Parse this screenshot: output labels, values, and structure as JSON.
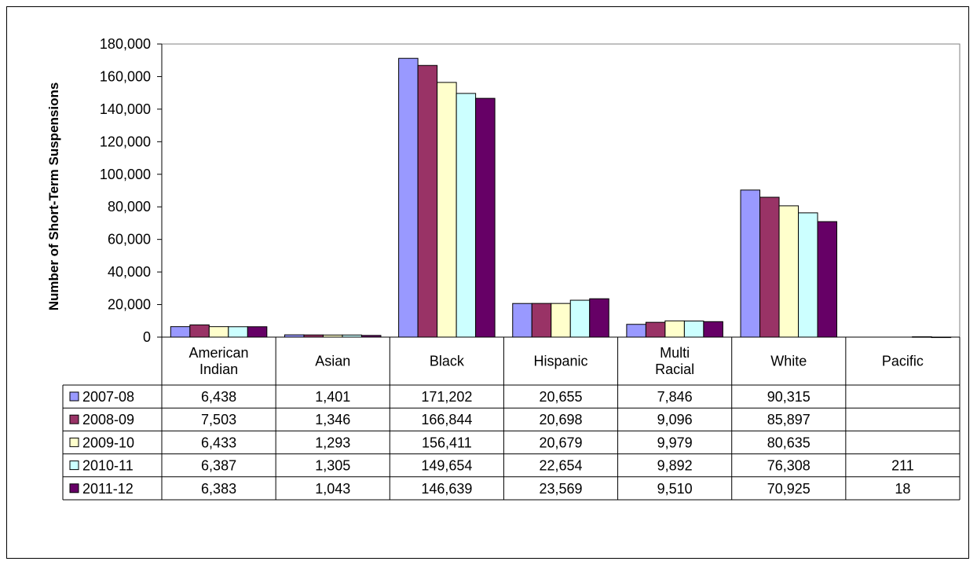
{
  "chart_data": {
    "type": "bar",
    "title": "",
    "xlabel": "",
    "ylabel": "Number of Short-Term  Suspensions",
    "ylim": [
      0,
      180000
    ],
    "yticks": [
      0,
      20000,
      40000,
      60000,
      80000,
      100000,
      120000,
      140000,
      160000,
      180000
    ],
    "ytick_labels": [
      "0",
      "20,000",
      "40,000",
      "60,000",
      "80,000",
      "100,000",
      "120,000",
      "140,000",
      "160,000",
      "180,000"
    ],
    "categories": [
      [
        "American",
        "Indian"
      ],
      [
        "Asian"
      ],
      [
        "Black"
      ],
      [
        "Hispanic"
      ],
      [
        "Multi",
        "Racial"
      ],
      [
        "White"
      ],
      [
        "Pacific"
      ]
    ],
    "grid": false,
    "legend": "data-table",
    "series": [
      {
        "name": "2007-08",
        "color": "#9999ff",
        "values": [
          6438,
          1401,
          171202,
          20655,
          7846,
          90315,
          null
        ],
        "labels": [
          "6,438",
          "1,401",
          "171,202",
          "20,655",
          "7,846",
          "90,315",
          ""
        ]
      },
      {
        "name": "2008-09",
        "color": "#993366",
        "values": [
          7503,
          1346,
          166844,
          20698,
          9096,
          85897,
          null
        ],
        "labels": [
          "7,503",
          "1,346",
          "166,844",
          "20,698",
          "9,096",
          "85,897",
          ""
        ]
      },
      {
        "name": "2009-10",
        "color": "#ffffcc",
        "values": [
          6433,
          1293,
          156411,
          20679,
          9979,
          80635,
          null
        ],
        "labels": [
          "6,433",
          "1,293",
          "156,411",
          "20,679",
          "9,979",
          "80,635",
          ""
        ]
      },
      {
        "name": "2010-11",
        "color": "#ccffff",
        "values": [
          6387,
          1305,
          149654,
          22654,
          9892,
          76308,
          211
        ],
        "labels": [
          "6,387",
          "1,305",
          "149,654",
          "22,654",
          "9,892",
          "76,308",
          "211"
        ]
      },
      {
        "name": "2011-12",
        "color": "#660066",
        "values": [
          6383,
          1043,
          146639,
          23569,
          9510,
          70925,
          18
        ],
        "labels": [
          "6,383",
          "1,043",
          "146,639",
          "23,569",
          "9,510",
          "70,925",
          "18"
        ]
      }
    ]
  }
}
